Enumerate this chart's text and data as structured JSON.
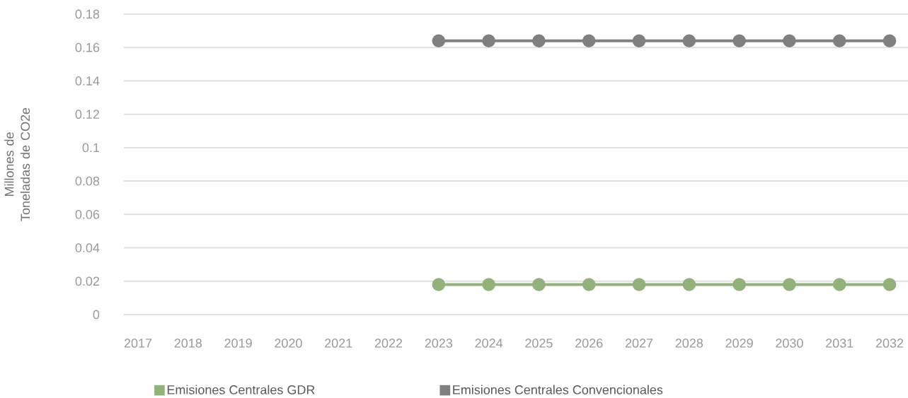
{
  "chart_data": {
    "type": "line",
    "ylabel": "Millones de Toneladas de CO2e",
    "categories": [
      "2017",
      "2018",
      "2019",
      "2020",
      "2021",
      "2022",
      "2023",
      "2024",
      "2025",
      "2026",
      "2027",
      "2028",
      "2029",
      "2030",
      "2031",
      "2032"
    ],
    "series": [
      {
        "name": "Emisiones Centrales GDR",
        "color": "#93b27b",
        "values": [
          null,
          null,
          null,
          null,
          null,
          null,
          0.018,
          0.018,
          0.018,
          0.018,
          0.018,
          0.018,
          0.018,
          0.018,
          0.018,
          0.018
        ]
      },
      {
        "name": "Emisiones Centrales Convencionales",
        "color": "#808080",
        "values": [
          null,
          null,
          null,
          null,
          null,
          null,
          0.164,
          0.164,
          0.164,
          0.164,
          0.164,
          0.164,
          0.164,
          0.164,
          0.164,
          0.164
        ]
      }
    ],
    "ylim": [
      0,
      0.18
    ],
    "yticks": [
      0,
      0.02,
      0.04,
      0.06,
      0.08,
      0.1,
      0.12,
      0.14,
      0.16,
      0.18
    ],
    "grid": "y",
    "legend": "bottom",
    "marker": "circle",
    "line_style": "solid"
  }
}
